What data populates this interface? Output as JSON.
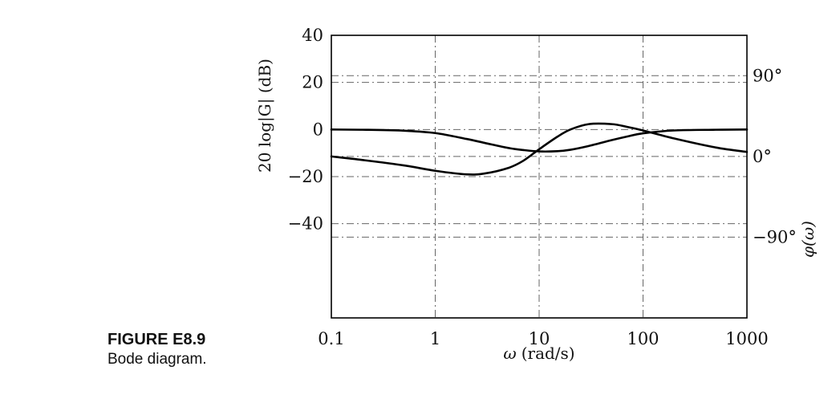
{
  "figure": {
    "label": "FIGURE E8.9",
    "caption": "Bode diagram."
  },
  "chart_data": {
    "type": "line",
    "xscale": "log",
    "xlim": [
      0.1,
      1000
    ],
    "x_ticks": [
      {
        "value": 0.1,
        "label": "0.1"
      },
      {
        "value": 1,
        "label": "1"
      },
      {
        "value": 10,
        "label": "10"
      },
      {
        "value": 100,
        "label": "100"
      },
      {
        "value": 1000,
        "label": "1000"
      }
    ],
    "xlabel_symbol": "ω",
    "xlabel_unit": "(rad/s)",
    "ylabel_left": "20 log|G| (dB)",
    "ylim_left": [
      -80,
      40
    ],
    "y_ticks_left": [
      {
        "value": 40,
        "label": "40"
      },
      {
        "value": 20,
        "label": "20"
      },
      {
        "value": 0,
        "label": "0"
      },
      {
        "value": -20,
        "label": "−20"
      },
      {
        "value": -40,
        "label": "−40"
      }
    ],
    "ylabel_right": "φ(ω)",
    "ylim_right": [
      -180,
      135
    ],
    "y_ticks_right": [
      {
        "value": 90,
        "label": "90°"
      },
      {
        "value": 0,
        "label": "0°"
      },
      {
        "value": -90,
        "label": "−90°"
      }
    ],
    "grid": true,
    "series": [
      {
        "axis": "left",
        "x": [
          0.1,
          0.2,
          0.5,
          1,
          2,
          3,
          5,
          7,
          10,
          15,
          20,
          30,
          50,
          70,
          100,
          200,
          500,
          1000
        ],
        "y": [
          0,
          -0.1,
          -0.5,
          -1.5,
          -4,
          -5.7,
          -7.8,
          -8.7,
          -9.3,
          -9.2,
          -8.6,
          -7,
          -4.5,
          -3,
          -1.6,
          -0.4,
          -0.1,
          0
        ]
      },
      {
        "axis": "right",
        "x": [
          0.1,
          0.2,
          0.5,
          1,
          2,
          3,
          5,
          7,
          10,
          15,
          20,
          30,
          50,
          70,
          100,
          200,
          500,
          1000
        ],
        "y": [
          0,
          -4,
          -10,
          -16,
          -20,
          -19,
          -13,
          -5,
          8,
          22,
          30,
          36,
          36,
          33,
          29,
          20,
          10,
          5
        ]
      }
    ]
  }
}
